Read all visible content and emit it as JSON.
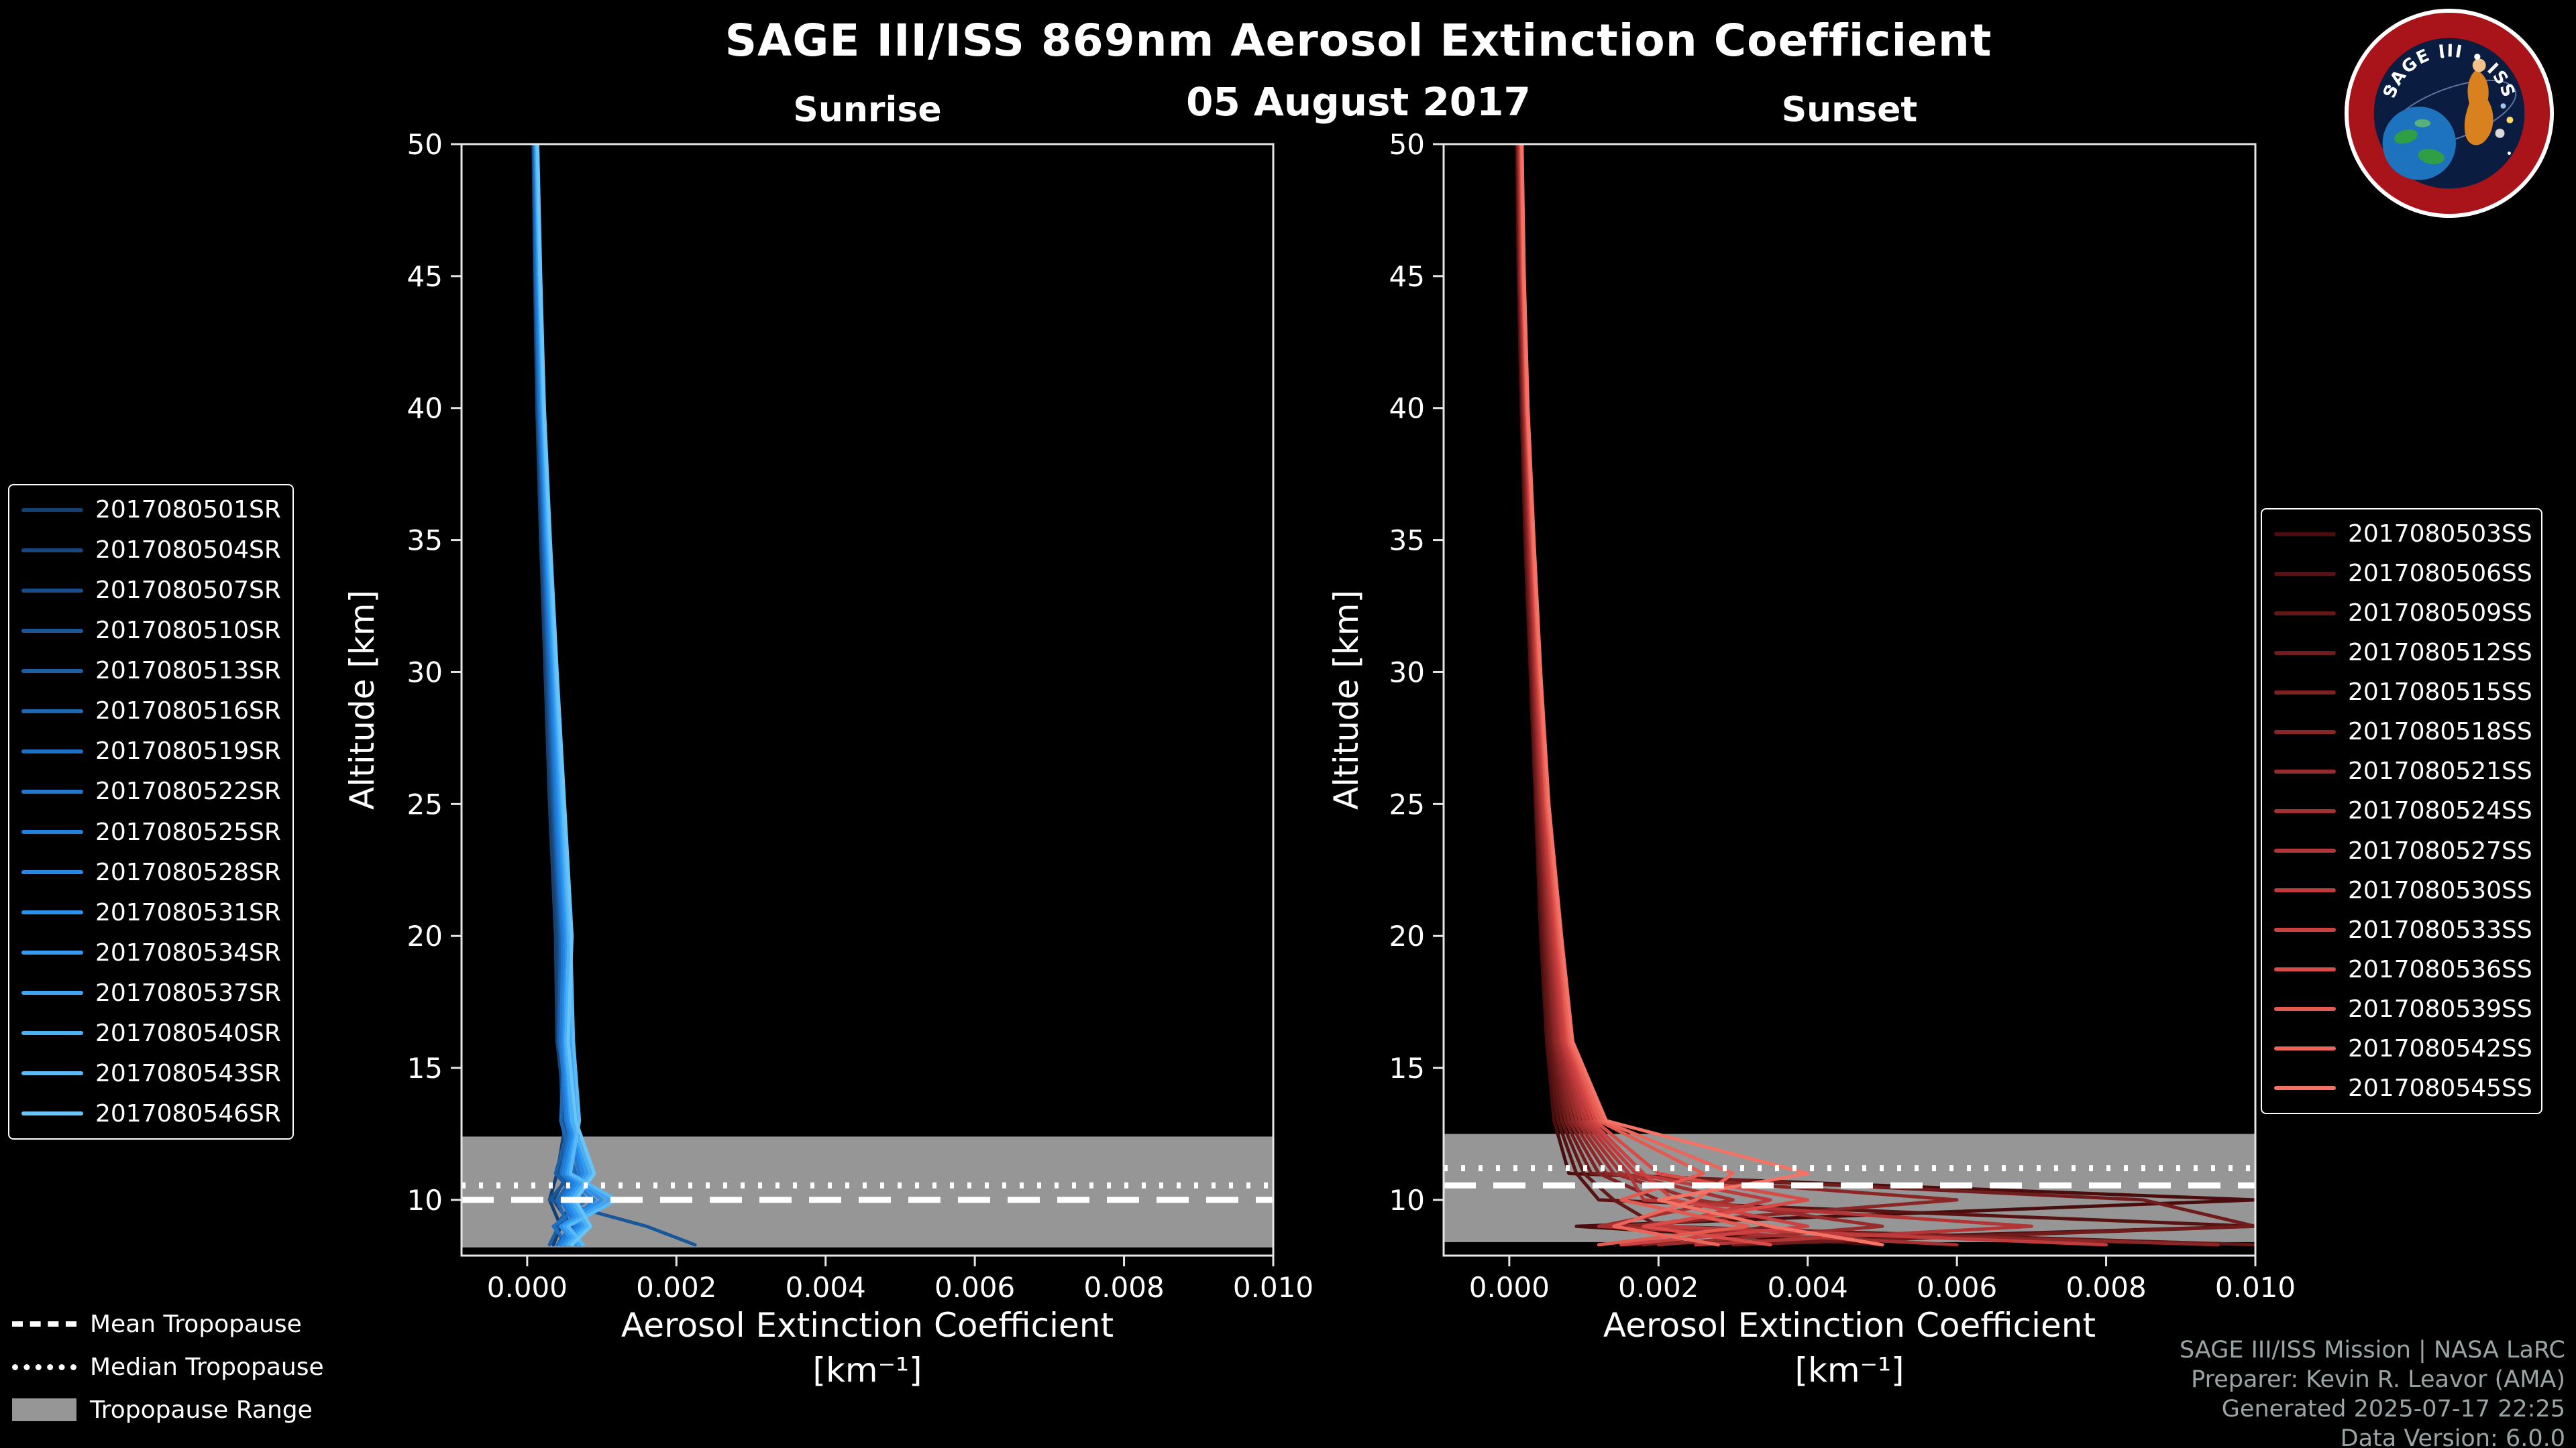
{
  "header": {
    "title": "SAGE III/ISS 869nm Aerosol Extinction Coefficient",
    "date": "05 August 2017"
  },
  "logo": {
    "text": "SAGE III • ISS"
  },
  "tropopause_legend": {
    "mean": "Mean Tropopause",
    "median": "Median Tropopause",
    "range": "Tropopause Range"
  },
  "footer": {
    "lines": [
      "SAGE III/ISS Mission | NASA LaRC",
      "Preparer: Kevin R. Leavor (AMA)",
      "Generated 2025-07-17 22:25",
      "Data Version: 6.0.0"
    ]
  },
  "colors": {
    "background": "#000000",
    "text": "#ffffff",
    "spine": "#e6e6e6",
    "band": "#969696",
    "tropopause_line": "#ffffff",
    "credits": "#9aa4a4"
  },
  "chart_data": [
    {
      "type": "line",
      "title": "Sunrise",
      "xlabel": "Aerosol Extinction Coefficient",
      "xlabel_units": "[km⁻¹]",
      "ylabel": "Altitude [km]",
      "xlim": [
        -0.00088,
        0.01
      ],
      "ylim": [
        7.89,
        50
      ],
      "grid": false,
      "legend_position": "left",
      "xticks": {
        "values": [
          0.0,
          0.002,
          0.004,
          0.006,
          0.008,
          0.01
        ],
        "labels": [
          "0.000",
          "0.002",
          "0.004",
          "0.006",
          "0.008",
          "0.010"
        ]
      },
      "yticks": {
        "values": [
          10,
          15,
          20,
          25,
          30,
          35,
          40,
          45,
          50
        ],
        "labels": [
          "10",
          "15",
          "20",
          "25",
          "30",
          "35",
          "40",
          "45",
          "50"
        ]
      },
      "tropopause": {
        "mean": 10.0,
        "median": 10.55,
        "range": [
          8.2,
          12.4
        ]
      },
      "altitudes": [
        50,
        45,
        40,
        35,
        30,
        25,
        20,
        16,
        13,
        11,
        10,
        9,
        8.3
      ],
      "series": [
        {
          "name": "2017080501SR",
          "color": "#16406e",
          "values": [
            8e-05,
            0.0001,
            0.00013,
            0.00018,
            0.00024,
            0.0003,
            0.00038,
            0.0004,
            0.00052,
            0.0004,
            0.0003,
            0.00045,
            0.00035
          ]
        },
        {
          "name": "2017080504SR",
          "color": "#17477c",
          "values": [
            9e-05,
            0.00011,
            0.00014,
            0.00019,
            0.00026,
            0.00033,
            0.00041,
            0.00044,
            0.00047,
            0.00055,
            0.00035,
            0.0006,
            0.0004
          ]
        },
        {
          "name": "2017080507SR",
          "color": "#184f8a",
          "values": [
            0.0001,
            0.00012,
            0.00015,
            0.0002,
            0.00027,
            0.00034,
            0.00043,
            0.00046,
            0.00055,
            0.00042,
            0.00065,
            0.00038,
            0.0005
          ]
        },
        {
          "name": "2017080510SR",
          "color": "#1a5798",
          "values": [
            9e-05,
            0.00011,
            0.00015,
            0.00021,
            0.00028,
            0.00035,
            0.00044,
            0.00048,
            0.0005,
            0.0006,
            0.0003,
            0.0016,
            0.00225
          ]
        },
        {
          "name": "2017080513SR",
          "color": "#1b5fa6",
          "values": [
            0.0001,
            0.00013,
            0.00016,
            0.00022,
            0.00029,
            0.00036,
            0.00045,
            0.00042,
            0.00058,
            0.00038,
            0.0007,
            0.00042,
            0.0003
          ]
        },
        {
          "name": "2017080516SR",
          "color": "#1d67b4",
          "values": [
            0.00011,
            0.00013,
            0.00017,
            0.00022,
            0.0003,
            0.00037,
            0.00046,
            0.0005,
            0.00045,
            0.00065,
            0.0004,
            0.00055,
            0.00045
          ]
        },
        {
          "name": "2017080519SR",
          "color": "#1e70c2",
          "values": [
            0.0001,
            0.00012,
            0.00016,
            0.00023,
            0.00031,
            0.00038,
            0.00047,
            0.00052,
            0.0006,
            0.00045,
            0.0008,
            0.00035,
            0.00055
          ]
        },
        {
          "name": "2017080522SR",
          "color": "#2078d0",
          "values": [
            0.00011,
            0.00014,
            0.00018,
            0.00024,
            0.00032,
            0.00039,
            0.00048,
            0.00045,
            0.00052,
            0.0007,
            0.00045,
            0.00065,
            0.0004
          ]
        },
        {
          "name": "2017080525SR",
          "color": "#2280dd",
          "values": [
            0.00012,
            0.00014,
            0.00018,
            0.00025,
            0.00033,
            0.0004,
            0.0005,
            0.00054,
            0.00062,
            0.00048,
            0.0009,
            0.0005,
            0.0006
          ]
        },
        {
          "name": "2017080528SR",
          "color": "#2489e6",
          "values": [
            0.00011,
            0.00015,
            0.00019,
            0.00025,
            0.00034,
            0.00042,
            0.00051,
            0.00048,
            0.00055,
            0.00075,
            0.0005,
            0.0007,
            0.00045
          ]
        },
        {
          "name": "2017080531SR",
          "color": "#2a92ec",
          "values": [
            0.00012,
            0.00015,
            0.0002,
            0.00026,
            0.00035,
            0.00043,
            0.00052,
            0.00056,
            0.00065,
            0.00052,
            0.001,
            0.00045,
            0.00065
          ]
        },
        {
          "name": "2017080534SR",
          "color": "#339bf0",
          "values": [
            0.00013,
            0.00016,
            0.0002,
            0.00027,
            0.00036,
            0.00044,
            0.00054,
            0.0005,
            0.00058,
            0.0008,
            0.00055,
            0.00075,
            0.0005
          ]
        },
        {
          "name": "2017080537SR",
          "color": "#3fa5f3",
          "values": [
            0.00012,
            0.00016,
            0.00021,
            0.00028,
            0.00037,
            0.00046,
            0.00055,
            0.0006,
            0.00068,
            0.00055,
            0.0011,
            0.0005,
            0.0007
          ]
        },
        {
          "name": "2017080540SR",
          "color": "#4cb0f5",
          "values": [
            0.00013,
            0.00017,
            0.00022,
            0.00029,
            0.00038,
            0.00047,
            0.00056,
            0.00052,
            0.0006,
            0.00085,
            0.0006,
            0.0008,
            0.00055
          ]
        },
        {
          "name": "2017080543SR",
          "color": "#59baf7",
          "values": [
            0.00014,
            0.00017,
            0.00022,
            0.0003,
            0.00039,
            0.00048,
            0.00058,
            0.00062,
            0.0007,
            0.00058,
            0.0012,
            0.00055,
            0.00075
          ]
        },
        {
          "name": "2017080546SR",
          "color": "#67c5f9",
          "values": [
            0.00014,
            0.00018,
            0.00023,
            0.00031,
            0.0004,
            0.0005,
            0.0006,
            0.00055,
            0.00065,
            0.0009,
            0.00065,
            0.00085,
            0.0006
          ]
        }
      ]
    },
    {
      "type": "line",
      "title": "Sunset",
      "xlabel": "Aerosol Extinction Coefficient",
      "xlabel_units": "[km⁻¹]",
      "ylabel": "Altitude [km]",
      "xlim": [
        -0.00088,
        0.01
      ],
      "ylim": [
        7.89,
        50
      ],
      "grid": false,
      "legend_position": "right",
      "xticks": {
        "values": [
          0.0,
          0.002,
          0.004,
          0.006,
          0.008,
          0.01
        ],
        "labels": [
          "0.000",
          "0.002",
          "0.004",
          "0.006",
          "0.008",
          "0.010"
        ]
      },
      "yticks": {
        "values": [
          10,
          15,
          20,
          25,
          30,
          35,
          40,
          45,
          50
        ],
        "labels": [
          "10",
          "15",
          "20",
          "25",
          "30",
          "35",
          "40",
          "45",
          "50"
        ]
      },
      "tropopause": {
        "mean": 10.55,
        "median": 11.2,
        "range": [
          8.4,
          12.5
        ]
      },
      "altitudes": [
        50,
        45,
        40,
        35,
        30,
        25,
        20,
        16,
        13,
        11,
        10,
        9,
        8.3
      ],
      "series": [
        {
          "name": "2017080503SS",
          "color": "#4a0d0d",
          "values": [
            0.0001,
            0.00012,
            0.00016,
            0.00021,
            0.00028,
            0.00035,
            0.00042,
            0.0005,
            0.0006,
            0.0008,
            0.01,
            0.0009,
            0.005
          ]
        },
        {
          "name": "2017080506SS",
          "color": "#571212",
          "values": [
            0.00011,
            0.00013,
            0.00017,
            0.00022,
            0.00029,
            0.00036,
            0.00044,
            0.00052,
            0.00065,
            0.0009,
            0.0012,
            0.01,
            0.0015
          ]
        },
        {
          "name": "2017080509SS",
          "color": "#641717",
          "values": [
            0.00011,
            0.00014,
            0.00018,
            0.00023,
            0.0003,
            0.00037,
            0.00046,
            0.00055,
            0.0007,
            0.001,
            0.0014,
            0.002,
            0.01
          ]
        },
        {
          "name": "2017080512SS",
          "color": "#711c1c",
          "values": [
            0.00012,
            0.00014,
            0.00018,
            0.00024,
            0.00031,
            0.00038,
            0.00048,
            0.00058,
            0.00075,
            0.0011,
            0.0085,
            0.01,
            0.003
          ]
        },
        {
          "name": "2017080515SS",
          "color": "#7e2121",
          "values": [
            0.00012,
            0.00015,
            0.00019,
            0.00025,
            0.00032,
            0.0004,
            0.0005,
            0.0006,
            0.0008,
            0.0012,
            0.002,
            0.0035,
            0.0018
          ]
        },
        {
          "name": "2017080518SS",
          "color": "#8b2626",
          "values": [
            0.00013,
            0.00015,
            0.0002,
            0.00026,
            0.00033,
            0.00041,
            0.00052,
            0.00062,
            0.00085,
            0.0013,
            0.006,
            0.0015,
            0.0095
          ]
        },
        {
          "name": "2017080521SS",
          "color": "#982b2b",
          "values": [
            0.00013,
            0.00016,
            0.0002,
            0.00027,
            0.00034,
            0.00042,
            0.00054,
            0.00065,
            0.0009,
            0.0014,
            0.0025,
            0.005,
            0.002
          ]
        },
        {
          "name": "2017080524SS",
          "color": "#a53030",
          "values": [
            0.00014,
            0.00016,
            0.00021,
            0.00028,
            0.00035,
            0.00044,
            0.00056,
            0.00068,
            0.00095,
            0.0015,
            0.003,
            0.0012,
            0.006
          ]
        },
        {
          "name": "2017080527SS",
          "color": "#b23636",
          "values": [
            0.00014,
            0.00017,
            0.00022,
            0.00028,
            0.00036,
            0.00045,
            0.00058,
            0.0007,
            0.001,
            0.0016,
            0.0018,
            0.007,
            0.0025
          ]
        },
        {
          "name": "2017080530SS",
          "color": "#bf3b3b",
          "values": [
            0.00015,
            0.00017,
            0.00022,
            0.00029,
            0.00037,
            0.00046,
            0.0006,
            0.00072,
            0.00105,
            0.0017,
            0.0035,
            0.002,
            0.008
          ]
        },
        {
          "name": "2017080533SS",
          "color": "#cc4141",
          "values": [
            0.00015,
            0.00018,
            0.00023,
            0.0003,
            0.00038,
            0.00048,
            0.00062,
            0.00075,
            0.0011,
            0.0018,
            0.0022,
            0.004,
            0.0015
          ]
        },
        {
          "name": "2017080536SS",
          "color": "#d94b46",
          "values": [
            0.00016,
            0.00018,
            0.00023,
            0.00031,
            0.00039,
            0.00049,
            0.00064,
            0.00078,
            0.00115,
            0.002,
            0.004,
            0.0018,
            0.0035
          ]
        },
        {
          "name": "2017080539SS",
          "color": "#e35a50",
          "values": [
            0.00016,
            0.00019,
            0.00024,
            0.00031,
            0.0004,
            0.0005,
            0.00066,
            0.0008,
            0.0012,
            0.0026,
            0.0015,
            0.0032,
            0.0012
          ]
        },
        {
          "name": "2017080542SS",
          "color": "#ec655a",
          "values": [
            0.00017,
            0.00019,
            0.00024,
            0.00032,
            0.00041,
            0.00052,
            0.00068,
            0.00082,
            0.00125,
            0.003,
            0.0025,
            0.0014,
            0.0028
          ]
        },
        {
          "name": "2017080545SS",
          "color": "#f47365",
          "values": [
            0.00017,
            0.0002,
            0.00025,
            0.00033,
            0.00042,
            0.00053,
            0.0007,
            0.00085,
            0.0013,
            0.004,
            0.002,
            0.0035,
            0.005
          ]
        }
      ]
    }
  ]
}
